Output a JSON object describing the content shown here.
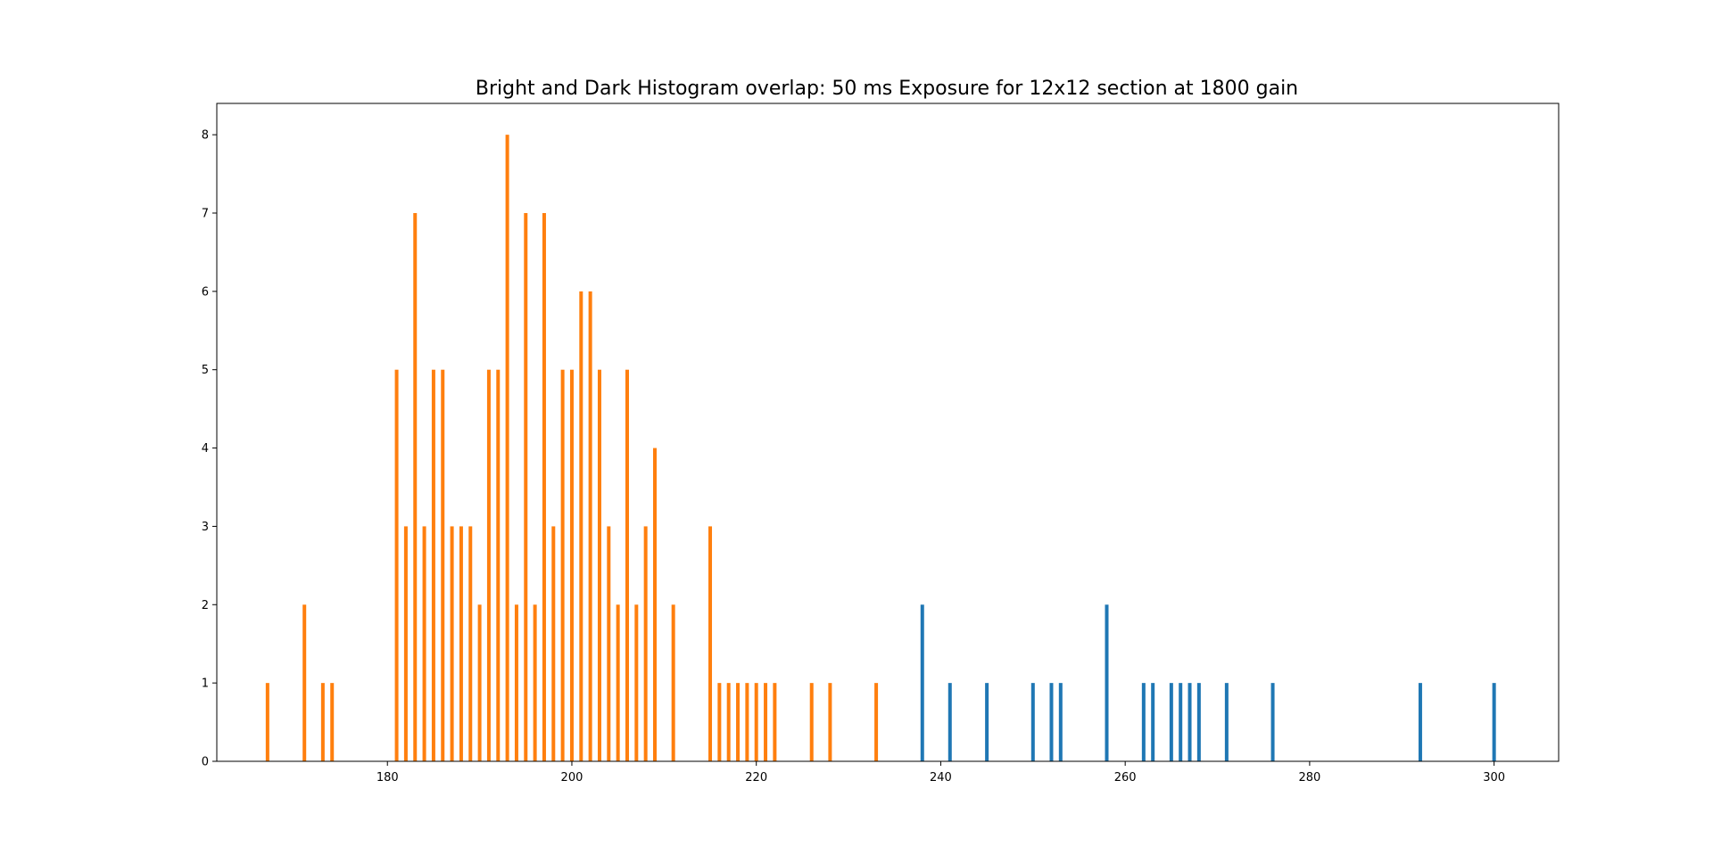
{
  "chart_data": {
    "type": "bar",
    "title": "Bright and Dark Histogram overlap: 50 ms Exposure for 12x12 section at 1800 gain",
    "xlabel": "",
    "ylabel": "",
    "xlim": [
      161.5,
      307.0
    ],
    "ylim": [
      0,
      8.4
    ],
    "xticks": [
      "180",
      "200",
      "220",
      "240",
      "260",
      "280",
      "300"
    ],
    "yticks": [
      "0",
      "1",
      "2",
      "3",
      "4",
      "5",
      "6",
      "7",
      "8"
    ],
    "grid": false,
    "legend": "none",
    "series": [
      {
        "color": "#1f77b4",
        "bars": [
          {
            "x": 238,
            "y": 2
          },
          {
            "x": 241,
            "y": 1
          },
          {
            "x": 245,
            "y": 1
          },
          {
            "x": 250,
            "y": 1
          },
          {
            "x": 252,
            "y": 1
          },
          {
            "x": 253,
            "y": 1
          },
          {
            "x": 258,
            "y": 2
          },
          {
            "x": 262,
            "y": 1
          },
          {
            "x": 263,
            "y": 1
          },
          {
            "x": 265,
            "y": 1
          },
          {
            "x": 266,
            "y": 1
          },
          {
            "x": 267,
            "y": 1
          },
          {
            "x": 268,
            "y": 1
          },
          {
            "x": 271,
            "y": 1
          },
          {
            "x": 276,
            "y": 1
          },
          {
            "x": 292,
            "y": 1
          },
          {
            "x": 300,
            "y": 1
          }
        ]
      },
      {
        "color": "#ff7f0e",
        "bars": [
          {
            "x": 167,
            "y": 1
          },
          {
            "x": 171,
            "y": 2
          },
          {
            "x": 173,
            "y": 1
          },
          {
            "x": 174,
            "y": 1
          },
          {
            "x": 181,
            "y": 5
          },
          {
            "x": 182,
            "y": 3
          },
          {
            "x": 183,
            "y": 7
          },
          {
            "x": 184,
            "y": 3
          },
          {
            "x": 185,
            "y": 5
          },
          {
            "x": 186,
            "y": 5
          },
          {
            "x": 187,
            "y": 3
          },
          {
            "x": 188,
            "y": 3
          },
          {
            "x": 189,
            "y": 3
          },
          {
            "x": 190,
            "y": 2
          },
          {
            "x": 191,
            "y": 5
          },
          {
            "x": 192,
            "y": 5
          },
          {
            "x": 193,
            "y": 8
          },
          {
            "x": 194,
            "y": 2
          },
          {
            "x": 195,
            "y": 7
          },
          {
            "x": 196,
            "y": 2
          },
          {
            "x": 197,
            "y": 7
          },
          {
            "x": 198,
            "y": 3
          },
          {
            "x": 199,
            "y": 5
          },
          {
            "x": 200,
            "y": 5
          },
          {
            "x": 201,
            "y": 6
          },
          {
            "x": 202,
            "y": 6
          },
          {
            "x": 203,
            "y": 5
          },
          {
            "x": 204,
            "y": 3
          },
          {
            "x": 205,
            "y": 2
          },
          {
            "x": 206,
            "y": 5
          },
          {
            "x": 207,
            "y": 2
          },
          {
            "x": 208,
            "y": 3
          },
          {
            "x": 209,
            "y": 4
          },
          {
            "x": 211,
            "y": 2
          },
          {
            "x": 215,
            "y": 3
          },
          {
            "x": 216,
            "y": 1
          },
          {
            "x": 217,
            "y": 1
          },
          {
            "x": 218,
            "y": 1
          },
          {
            "x": 219,
            "y": 1
          },
          {
            "x": 220,
            "y": 1
          },
          {
            "x": 221,
            "y": 1
          },
          {
            "x": 222,
            "y": 1
          },
          {
            "x": 226,
            "y": 1
          },
          {
            "x": 228,
            "y": 1
          },
          {
            "x": 233,
            "y": 1
          }
        ]
      }
    ]
  }
}
